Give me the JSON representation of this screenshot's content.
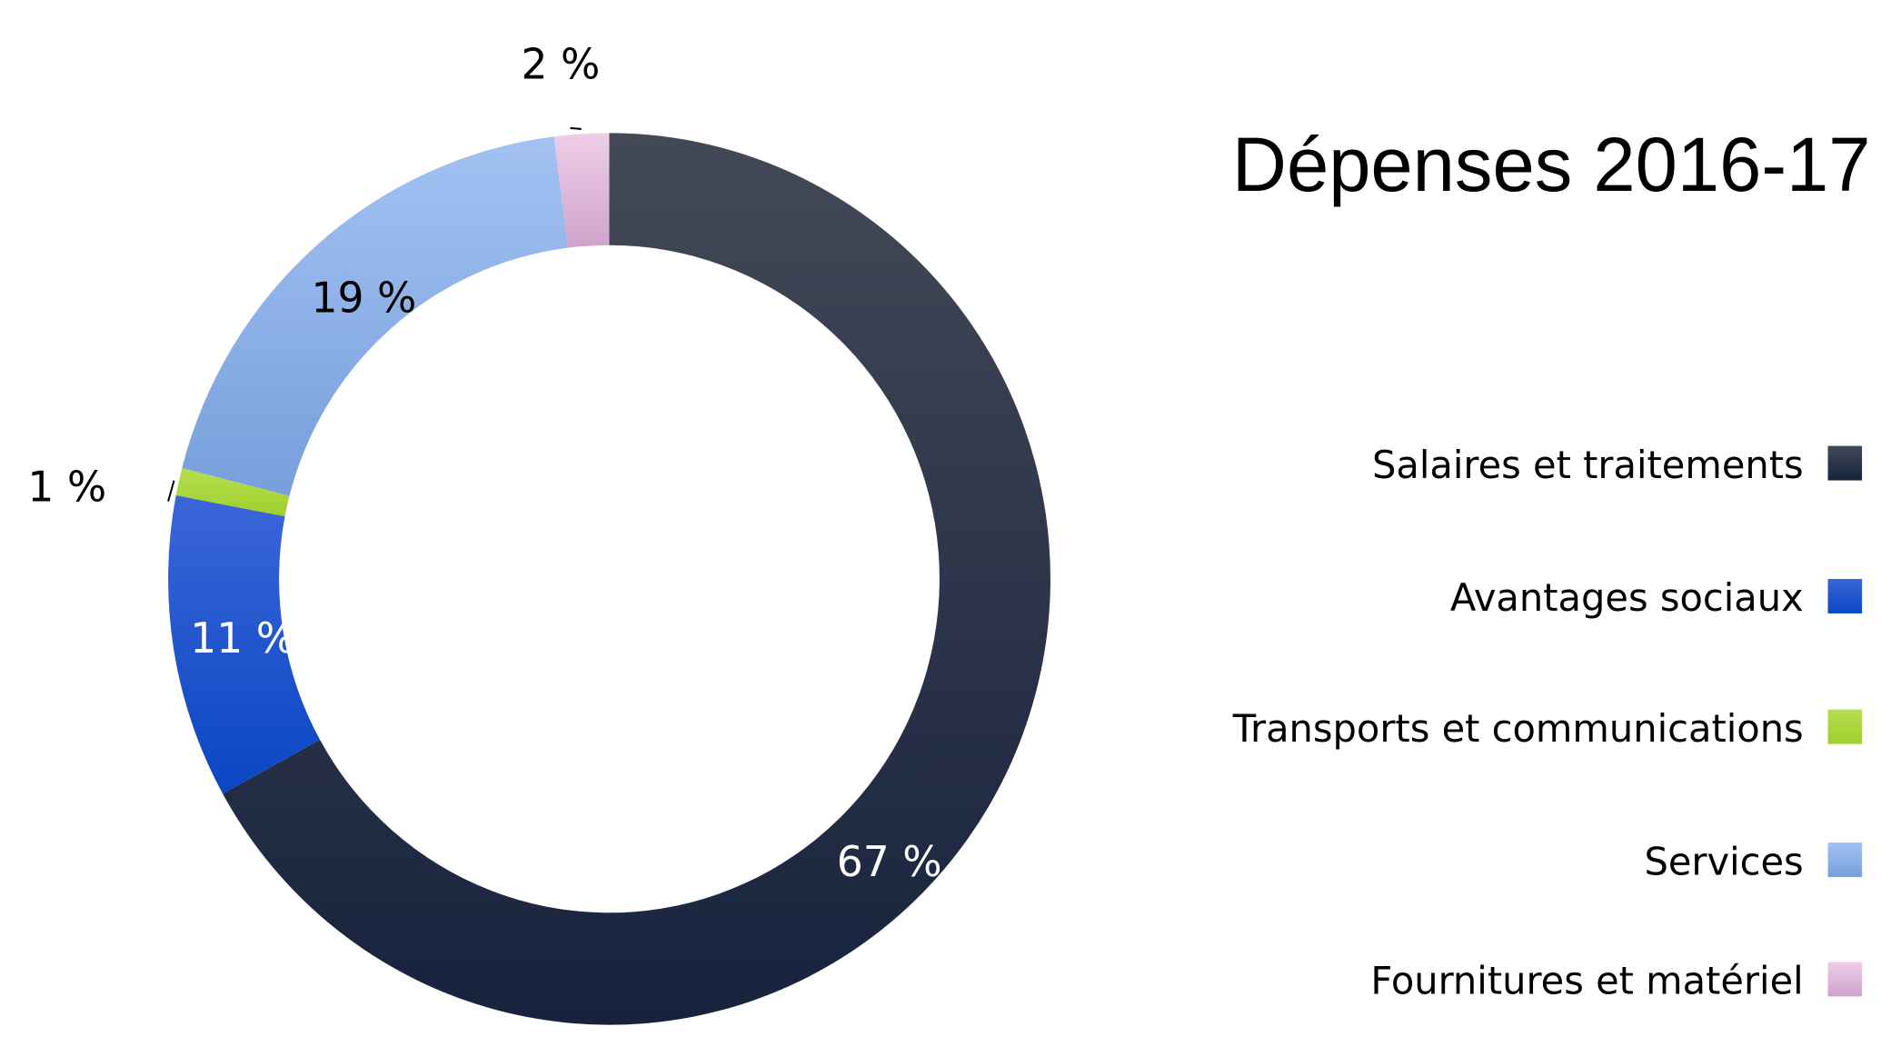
{
  "chart_data": {
    "type": "pie",
    "variant": "donut",
    "title": "Dépenses 2016-17",
    "legend_position": "right",
    "categories": [
      "Salaires et traitements",
      "Avantages sociaux",
      "Transports et communications",
      "Services",
      "Fournitures et matériel"
    ],
    "values": [
      67,
      11,
      1,
      19,
      2
    ],
    "labels": [
      "67 %",
      "11 %",
      "1 %",
      "19 %",
      "2 %"
    ],
    "colors": [
      [
        "#434957",
        "#17223d"
      ],
      [
        "#3b66d8",
        "#0a46c4"
      ],
      [
        "#b6de50",
        "#9fcf2e"
      ],
      [
        "#a3c2f3",
        "#779fdb"
      ],
      [
        "#eecde8",
        "#cfa3cb"
      ]
    ],
    "label_colors": [
      "#ffffff",
      "#ffffff",
      "#000000",
      "#000000",
      "#000000"
    ]
  }
}
